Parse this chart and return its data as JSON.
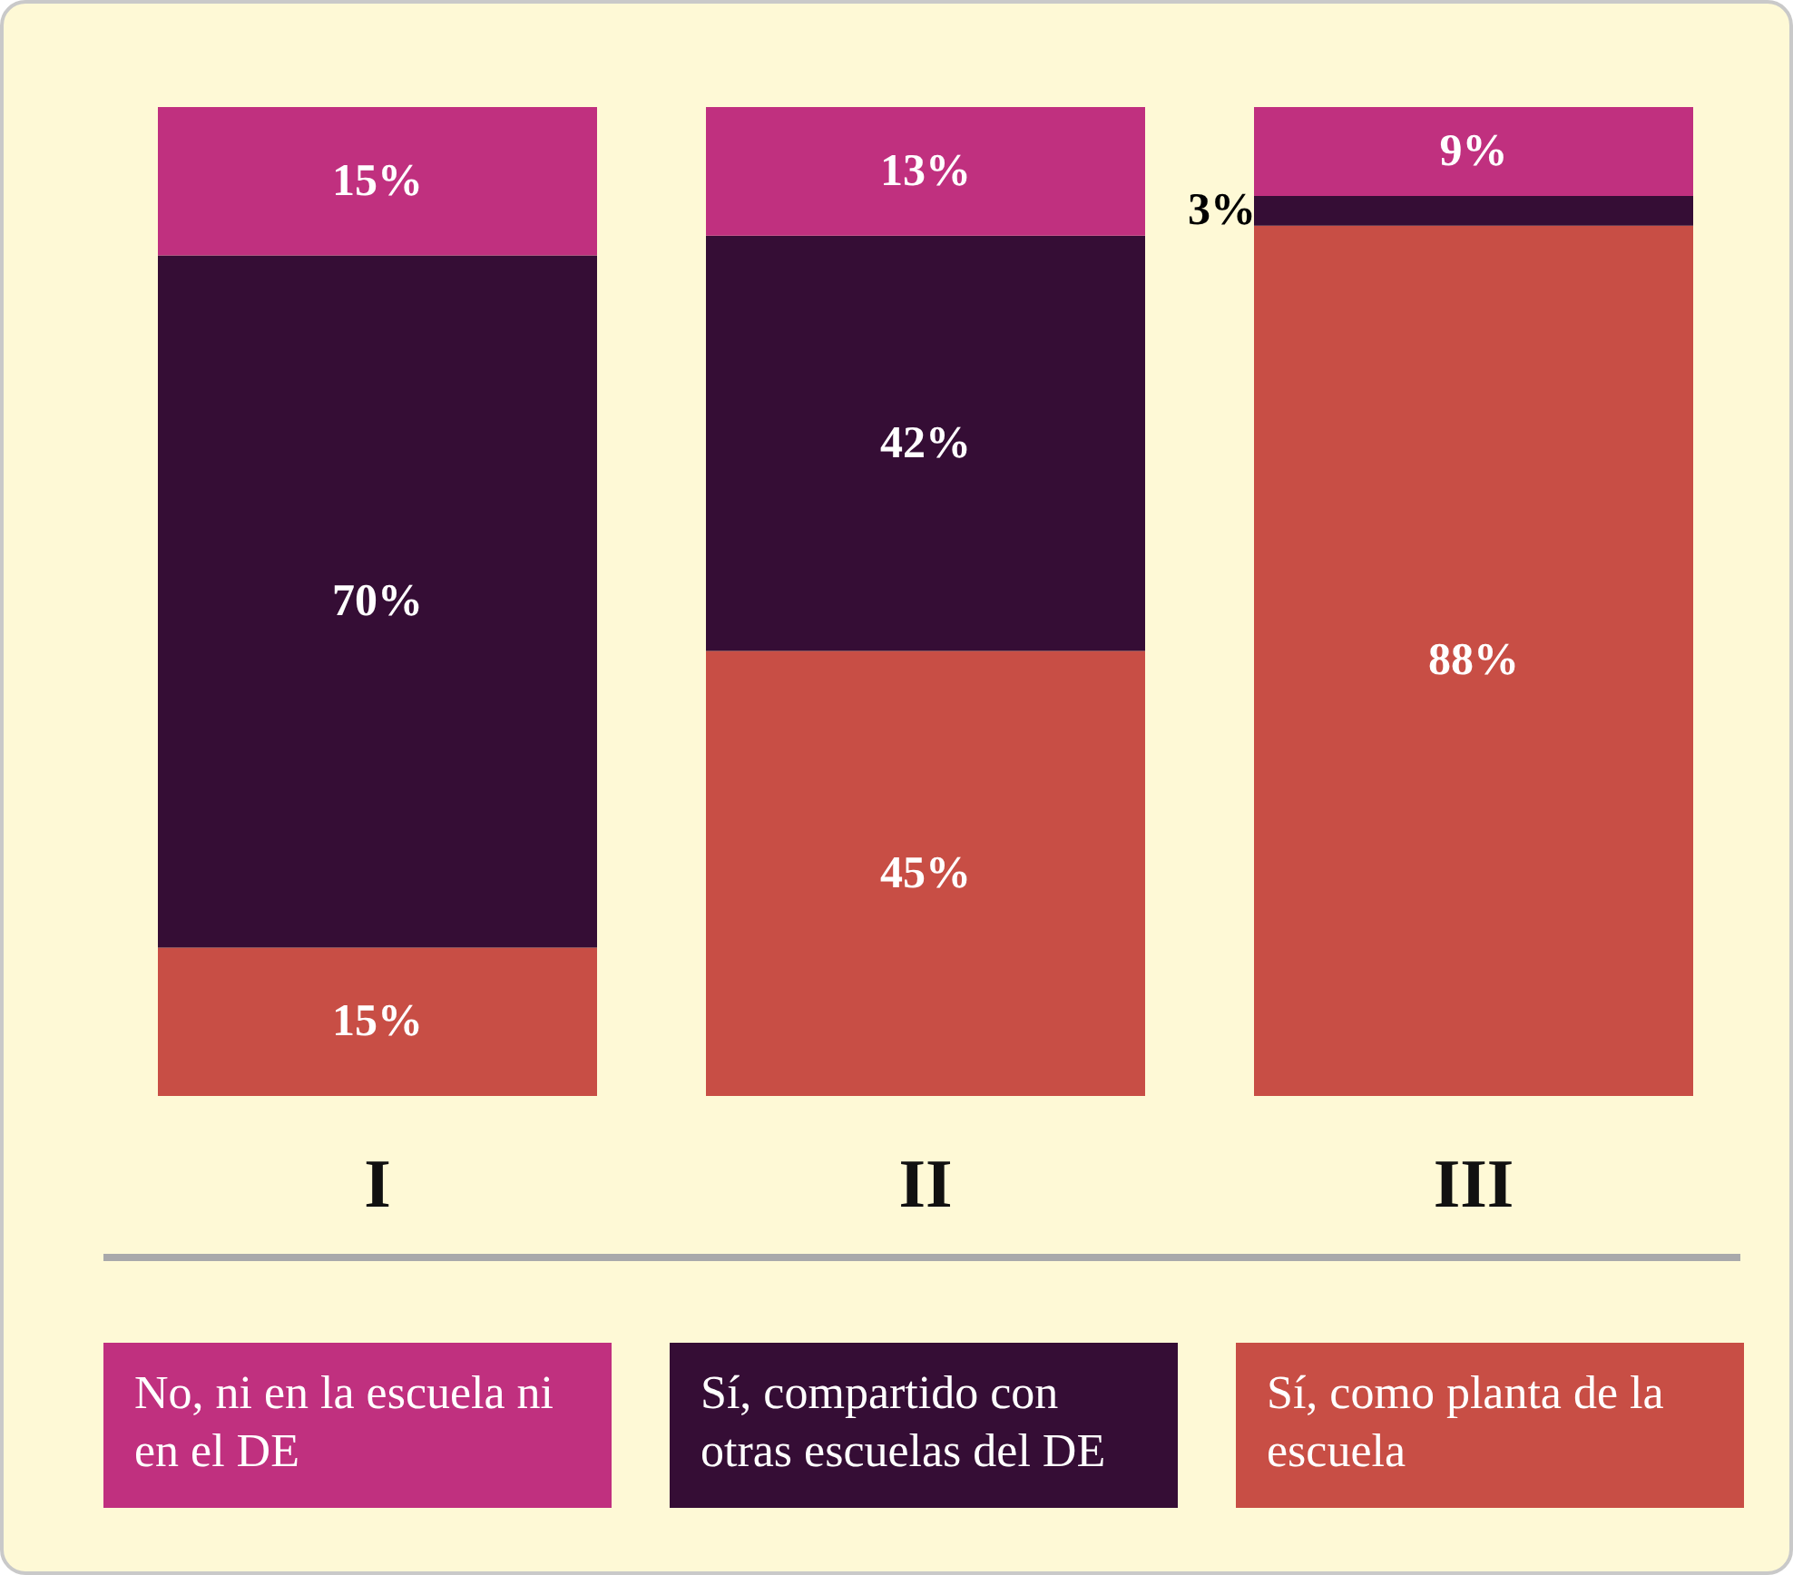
{
  "chart_data": {
    "type": "bar",
    "stacked": true,
    "legend": "bottom",
    "categories": [
      "I",
      "II",
      "III"
    ],
    "series": [
      {
        "name": "Sí, como planta de la escuela",
        "color": "#c84e45",
        "values": [
          15,
          45,
          88
        ],
        "value_labels": [
          "15%",
          "45%",
          "88%"
        ]
      },
      {
        "name": "Sí, compartido con otras escuelas del DE",
        "color": "#350d35",
        "values": [
          70,
          42,
          3
        ],
        "value_labels": [
          "70%",
          "42%",
          "3%"
        ]
      },
      {
        "name": "No, ni en la escuela ni en el DE",
        "color": "#c0307f",
        "values": [
          15,
          13,
          9
        ],
        "value_labels": [
          "15%",
          "13%",
          "9%"
        ]
      }
    ]
  }
}
